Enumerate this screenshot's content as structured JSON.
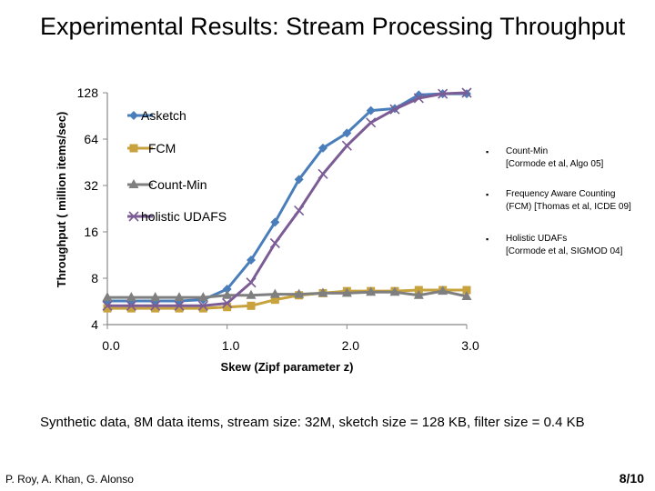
{
  "slide": {
    "title": "Experimental Results: Stream Processing Throughput",
    "caption": "Synthetic data, 8M data items, stream size: 32M, sketch size = 128 KB, filter size = 0.4 KB",
    "authors": "P. Roy, A. Khan, G. Alonso",
    "slide_number": "8/10",
    "references": [
      {
        "line1": "Count-Min",
        "line2": "[Cormode et al,  Algo 05]"
      },
      {
        "line1": "Frequency Aware Counting",
        "line2": "(FCM) [Thomas et al, ICDE 09]"
      },
      {
        "line1": "Holistic UDAFs",
        "line2": "[Cormode et al, SIGMOD 04]"
      }
    ],
    "bullet_char": "▪"
  },
  "chart_data": {
    "type": "line",
    "xlabel": "Skew (Zipf parameter z)",
    "ylabel": "Throughput ( million items/sec)",
    "xlim": [
      0,
      3.0
    ],
    "ylim": [
      4,
      128
    ],
    "y_scale": "log2",
    "x_ticks": [
      0,
      1.0,
      2.0,
      3.0
    ],
    "x_tick_labels": [
      "0.0",
      "1.0",
      "2.0",
      "3.0"
    ],
    "y_ticks": [
      4,
      8,
      16,
      32,
      64,
      128
    ],
    "y_tick_labels": [
      "4",
      "8",
      "16",
      "32",
      "64",
      "128"
    ],
    "grid": false,
    "legend_position": "top-left",
    "x": [
      0,
      0.2,
      0.4,
      0.6,
      0.8,
      1.0,
      1.2,
      1.4,
      1.6,
      1.8,
      2.0,
      2.2,
      2.4,
      2.6,
      2.8,
      3.0
    ],
    "series": [
      {
        "name": "Asketch",
        "color": "#4a7ebb",
        "marker": "diamond",
        "values": [
          5.7,
          5.7,
          5.7,
          5.7,
          5.8,
          6.8,
          10.5,
          18.5,
          35,
          56,
          70,
          98,
          101,
          124,
          126,
          126
        ]
      },
      {
        "name": "FCM",
        "color": "#c8a23c",
        "marker": "square",
        "values": [
          5.1,
          5.1,
          5.1,
          5.1,
          5.1,
          5.2,
          5.3,
          5.8,
          6.2,
          6.4,
          6.6,
          6.6,
          6.6,
          6.7,
          6.7,
          6.7
        ]
      },
      {
        "name": "Count-Min",
        "color": "#7f7f7f",
        "marker": "triangle",
        "values": [
          6.0,
          6.0,
          6.0,
          6.0,
          6.0,
          6.2,
          6.2,
          6.3,
          6.3,
          6.4,
          6.4,
          6.5,
          6.5,
          6.2,
          6.6,
          6.1
        ]
      },
      {
        "name": "holistic UDAFS",
        "color": "#7b5c95",
        "marker": "x",
        "values": [
          5.3,
          5.3,
          5.3,
          5.3,
          5.3,
          5.5,
          7.5,
          13.5,
          22,
          38,
          58,
          82,
          100,
          118,
          126,
          128
        ]
      }
    ]
  }
}
